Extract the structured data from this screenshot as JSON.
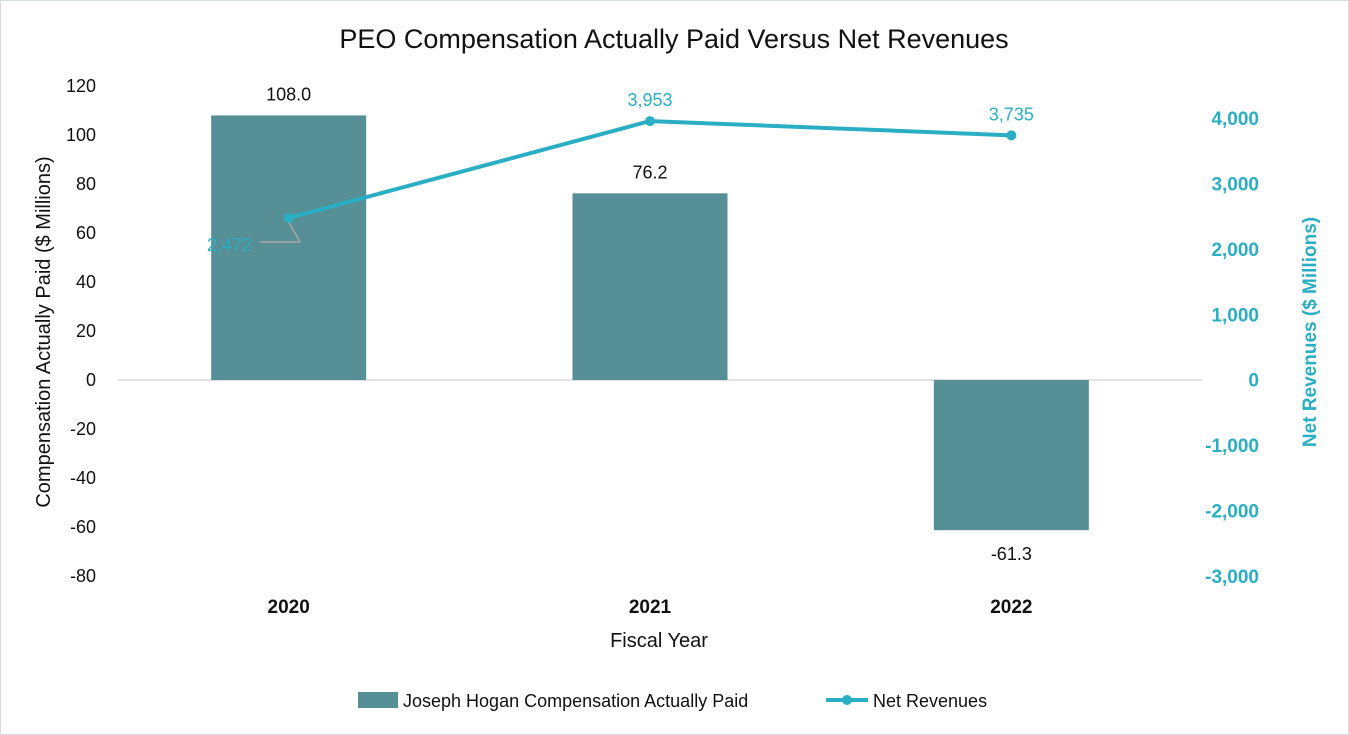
{
  "chart_data": {
    "type": "bar",
    "title": "PEO Compensation Actually Paid Versus Net Revenues",
    "xlabel": "Fiscal Year",
    "ylabel": "Compensation Actually Paid ($ Millions)",
    "y2label": "Net Revenues ($ Millions)",
    "categories": [
      "2020",
      "2021",
      "2022"
    ],
    "ylim": [
      -80,
      120
    ],
    "y_ticks": [
      "120",
      "100",
      "80",
      "60",
      "40",
      "20",
      "0",
      "-20",
      "-40",
      "-60",
      "-80"
    ],
    "y2lim": [
      -3000,
      4000
    ],
    "y2_ticks": [
      "4,000",
      "3,000",
      "2,000",
      "1,000",
      "0",
      "-1,000",
      "-2,000",
      "-3,000"
    ],
    "series": [
      {
        "name": "Joseph Hogan Compensation Actually Paid",
        "type": "bar",
        "axis": "left",
        "color": "#578f96",
        "values": [
          108.0,
          76.2,
          -61.3
        ],
        "labels": [
          "108.0",
          "76.2",
          "-61.3"
        ]
      },
      {
        "name": "Net Revenues",
        "type": "line",
        "axis": "right",
        "color": "#2aaec3",
        "values": [
          2472,
          3953,
          3735
        ],
        "labels": [
          "2,472",
          "3,953",
          "3,735"
        ]
      }
    ],
    "legend": "bottom",
    "grid": false
  }
}
